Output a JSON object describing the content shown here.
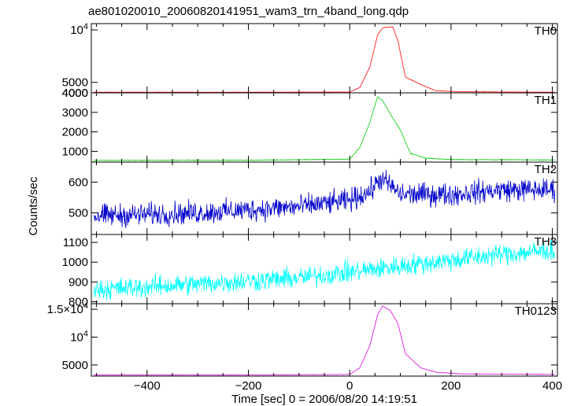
{
  "title": "ae801020010_20060820141951_wam3_trn_4band_long.qdp",
  "chart_data": {
    "type": "line",
    "xlabel": "Time [sec] 0 = 2006/08/20 14:19:51",
    "ylabel": "Counts/sec",
    "xlim": [
      -510,
      410
    ],
    "x_ticks": [
      -400,
      -200,
      0,
      200,
      400
    ],
    "x_tick_labels": [
      "−400",
      "−200",
      "0",
      "200",
      "400"
    ],
    "panels": [
      {
        "name": "TH0",
        "color": "#ff0000",
        "ylim": [
          4000,
          10600
        ],
        "y_ticks": [
          4000,
          5000,
          10000
        ],
        "y_tick_labels": [
          "4000",
          "5000",
          "10^4"
        ],
        "baseline": 4050,
        "peak_level": 10200,
        "noise": 12,
        "points": [
          [
            -505,
            4060
          ],
          [
            -200,
            4055
          ],
          [
            0,
            4080
          ],
          [
            20,
            4500
          ],
          [
            40,
            6500
          ],
          [
            55,
            9500
          ],
          [
            65,
            10200
          ],
          [
            85,
            10300
          ],
          [
            95,
            9000
          ],
          [
            110,
            5500
          ],
          [
            140,
            4800
          ],
          [
            170,
            4200
          ],
          [
            220,
            4100
          ],
          [
            405,
            4060
          ]
        ]
      },
      {
        "name": "TH1",
        "color": "#00cc00",
        "ylim": [
          450,
          4000
        ],
        "y_ticks": [
          1000,
          2000,
          3000,
          4000
        ],
        "y_tick_labels": [
          "1000",
          "2000",
          "3000",
          "4000"
        ],
        "baseline": 540,
        "noise": 15,
        "points": [
          [
            -505,
            540
          ],
          [
            -200,
            545
          ],
          [
            0,
            600
          ],
          [
            20,
            1200
          ],
          [
            40,
            2500
          ],
          [
            55,
            3800
          ],
          [
            65,
            3600
          ],
          [
            85,
            2700
          ],
          [
            100,
            2100
          ],
          [
            120,
            900
          ],
          [
            150,
            650
          ],
          [
            200,
            580
          ],
          [
            405,
            560
          ]
        ]
      },
      {
        "name": "TH2",
        "color": "#0000cc",
        "ylim": [
          430,
          665
        ],
        "y_ticks": [
          500,
          600
        ],
        "y_tick_labels": [
          "500",
          "600"
        ],
        "noise": 28,
        "points": [
          [
            -505,
            490
          ],
          [
            -300,
            500
          ],
          [
            -100,
            520
          ],
          [
            0,
            540
          ],
          [
            40,
            570
          ],
          [
            60,
            610
          ],
          [
            80,
            590
          ],
          [
            100,
            560
          ],
          [
            200,
            560
          ],
          [
            300,
            575
          ],
          [
            405,
            575
          ]
        ]
      },
      {
        "name": "TH3",
        "color": "#00ffff",
        "ylim": [
          790,
          1140
        ],
        "y_ticks": [
          800,
          900,
          1000,
          1100
        ],
        "y_tick_labels": [
          "800",
          "900",
          "1000",
          "1100"
        ],
        "noise": 40,
        "points": [
          [
            -505,
            860
          ],
          [
            -300,
            890
          ],
          [
            -100,
            920
          ],
          [
            0,
            950
          ],
          [
            100,
            980
          ],
          [
            200,
            1010
          ],
          [
            300,
            1040
          ],
          [
            405,
            1060
          ]
        ]
      },
      {
        "name": "TH0123",
        "color": "#dd00dd",
        "ylim": [
          3000,
          16000
        ],
        "y_ticks": [
          5000,
          10000,
          15000
        ],
        "y_tick_labels": [
          "5000",
          "10^4",
          "1.5×10^4"
        ],
        "noise": 25,
        "points": [
          [
            -505,
            3200
          ],
          [
            -200,
            3200
          ],
          [
            0,
            3300
          ],
          [
            20,
            4500
          ],
          [
            40,
            8500
          ],
          [
            55,
            14000
          ],
          [
            65,
            15600
          ],
          [
            80,
            14800
          ],
          [
            95,
            12500
          ],
          [
            110,
            7000
          ],
          [
            140,
            4500
          ],
          [
            170,
            3700
          ],
          [
            220,
            3400
          ],
          [
            405,
            3300
          ]
        ]
      }
    ]
  }
}
